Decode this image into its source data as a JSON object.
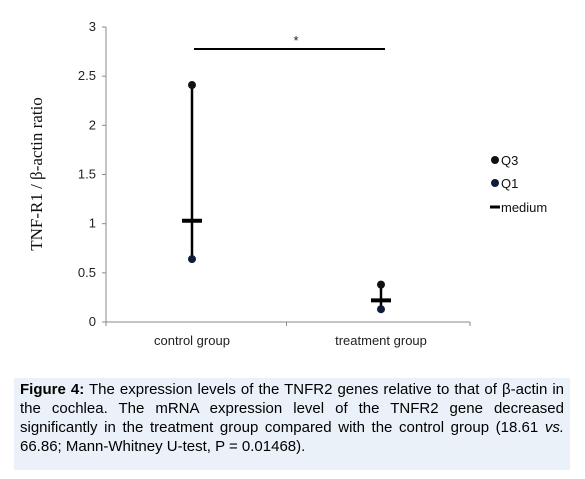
{
  "chart_data": {
    "type": "scatter",
    "categories": [
      "control group",
      "treatment group"
    ],
    "series": [
      {
        "name": "Q3",
        "values": [
          2.41,
          0.38
        ]
      },
      {
        "name": "Q1",
        "values": [
          0.64,
          0.13
        ]
      },
      {
        "name": "medium",
        "values": [
          1.03,
          0.22
        ]
      }
    ],
    "ylabel": "TNF-R1 / β-actin ratio",
    "ylim": [
      0,
      3
    ],
    "yticks": [
      "0",
      "0.5",
      "1",
      "1.5",
      "2",
      "2.5",
      "3"
    ],
    "significance_marker": "*",
    "legend_position": "right",
    "grid": false
  },
  "caption": {
    "label": "Figure 4:",
    "text_1": " The expression levels of the TNFR2 genes relative to that of β-actin in the cochlea. The mRNA expression level of the TNFR2 gene decreased significantly in the treatment group compared with the control group (18.61 ",
    "vs": "vs.",
    "text_2": " 66.86; Mann-Whitney U-test, P = 0.01468)."
  }
}
